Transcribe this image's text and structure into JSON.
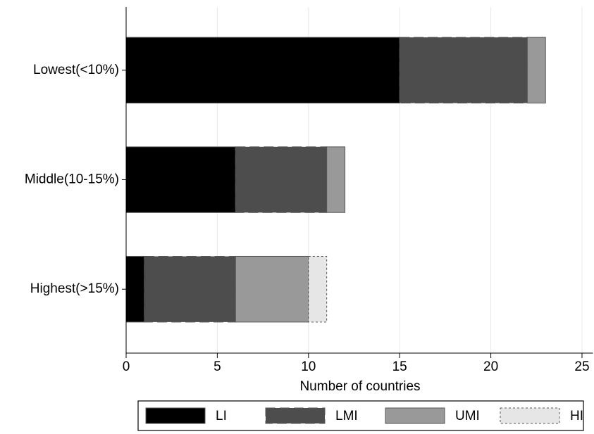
{
  "chart_data": {
    "type": "hbar_stacked",
    "categories": [
      "Lowest(<10%)",
      "Middle(10-15%)",
      "Highest(>15%)"
    ],
    "series": [
      {
        "name": "LI",
        "color": "#000000",
        "values": [
          15,
          6,
          1
        ]
      },
      {
        "name": "LMI",
        "color": "#4d4d4d",
        "values": [
          7,
          5,
          5
        ]
      },
      {
        "name": "UMI",
        "color": "#999999",
        "values": [
          1,
          1,
          4
        ]
      },
      {
        "name": "HI",
        "color": "#e6e6e6",
        "values": [
          0,
          0,
          1
        ]
      }
    ],
    "xlabel": "Number of countries",
    "xlim": [
      0,
      25.6
    ],
    "xticks": [
      0,
      5,
      10,
      15,
      20,
      25
    ],
    "grid": true,
    "legend": "bottom"
  }
}
